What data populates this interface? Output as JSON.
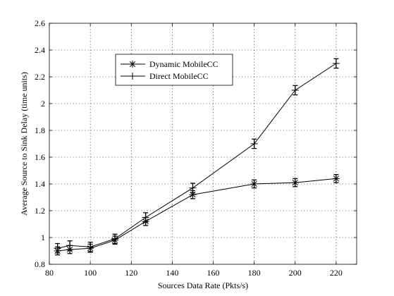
{
  "chart_data": {
    "type": "line",
    "title": "",
    "xlabel": "Sources Data Rate (Pkts/s)",
    "ylabel": "Average Source to Sink Delay (time units)",
    "xlim": [
      80,
      230
    ],
    "ylim": [
      0.8,
      2.6
    ],
    "xticks": [
      80,
      100,
      120,
      140,
      160,
      180,
      200,
      220
    ],
    "yticks": [
      0.8,
      1,
      1.2,
      1.4,
      1.6,
      1.8,
      2,
      2.2,
      2.4,
      2.6
    ],
    "grid": true,
    "legend_position": "upper-center",
    "x": [
      84,
      90,
      100,
      112,
      127,
      150,
      180,
      200,
      220
    ],
    "series": [
      {
        "name": "Dynamic MobileCC",
        "marker": "asterisk",
        "color": "#000000",
        "values": [
          0.9,
          0.91,
          0.92,
          0.98,
          1.12,
          1.32,
          1.4,
          1.41,
          1.44
        ],
        "errors": [
          0.03,
          0.03,
          0.03,
          0.03,
          0.03,
          0.03,
          0.03,
          0.03,
          0.03
        ]
      },
      {
        "name": "Direct MobileCC",
        "marker": "plus",
        "color": "#000000",
        "values": [
          0.92,
          0.94,
          0.93,
          0.99,
          1.15,
          1.37,
          1.7,
          2.1,
          2.3
        ],
        "errors": [
          0.035,
          0.035,
          0.035,
          0.035,
          0.035,
          0.035,
          0.035,
          0.035,
          0.035
        ]
      }
    ]
  }
}
